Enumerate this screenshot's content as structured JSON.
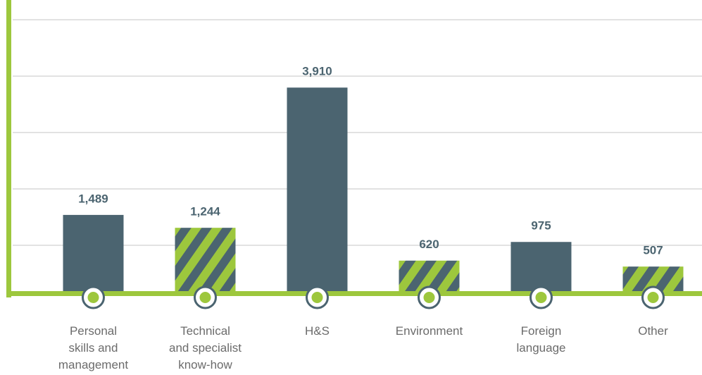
{
  "chart_data": {
    "type": "bar",
    "categories": [
      "Personal\nskills and\nmanagement",
      "Technical\nand specialist\nknow-how",
      "H&S",
      "Environment",
      "Foreign\nlanguage",
      "Other"
    ],
    "values": [
      1489,
      1244,
      3910,
      620,
      975,
      507
    ],
    "value_labels": [
      "1,489",
      "1,244",
      "3,910",
      "620",
      "975",
      "507"
    ],
    "color": "#4b6470",
    "hatch_color": "#9dc73d",
    "hatched": [
      false,
      true,
      false,
      true,
      false,
      true
    ],
    "ylim": [
      0,
      5200
    ],
    "grid": true
  }
}
